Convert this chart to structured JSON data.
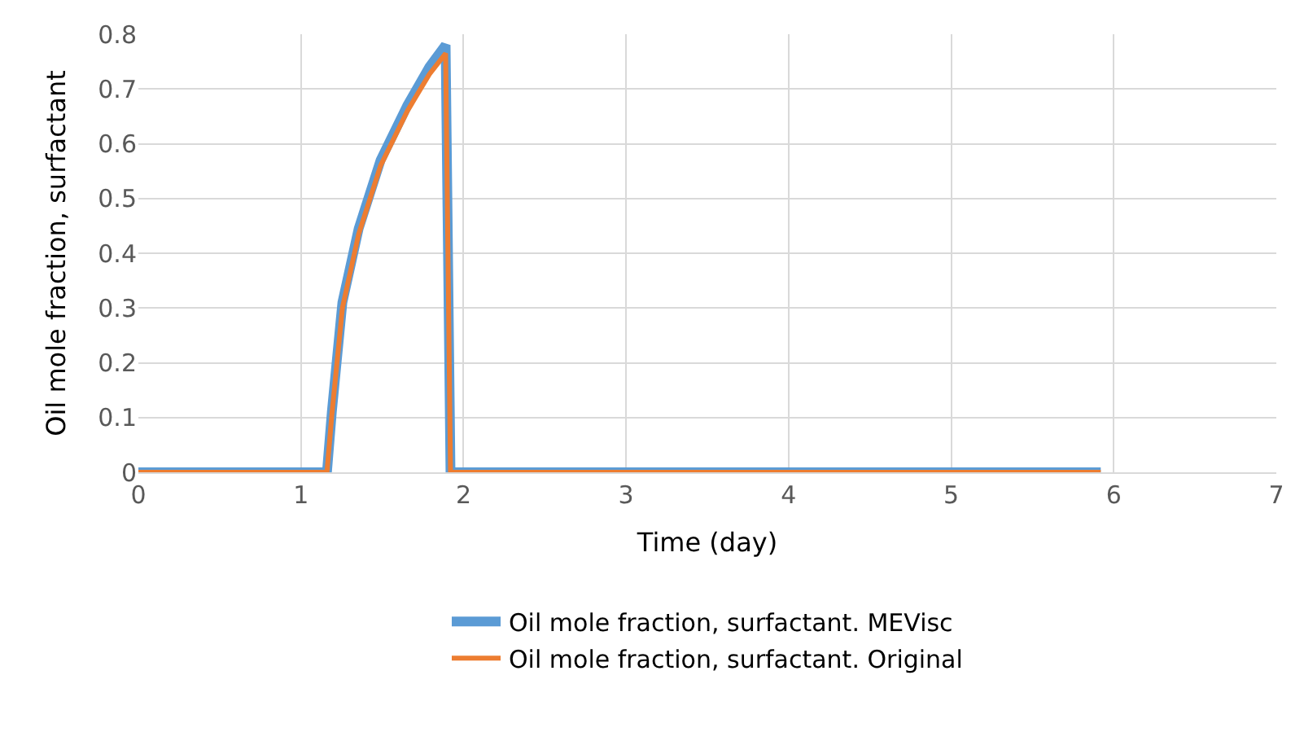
{
  "chart_data": {
    "type": "line",
    "xlabel": "Time (day)",
    "ylabel": "Oil mole fraction, surfactant",
    "series": [
      {
        "name": "Oil mole fraction, surfactant. MEVisc",
        "color": "#5b9bd5",
        "x": [
          0,
          1.16,
          1.19,
          1.255,
          1.355,
          1.49,
          1.655,
          1.79,
          1.89,
          1.92,
          5.92
        ],
        "values": [
          0,
          0,
          0.11,
          0.31,
          0.445,
          0.57,
          0.67,
          0.74,
          0.78,
          0,
          0
        ]
      },
      {
        "name": "Oil mole fraction, surfactant. Original",
        "color": "#ed7d31",
        "x": [
          0,
          1.16,
          1.19,
          1.255,
          1.355,
          1.49,
          1.655,
          1.79,
          1.89,
          1.92,
          5.92
        ],
        "values": [
          0,
          0,
          0.105,
          0.3,
          0.435,
          0.56,
          0.66,
          0.727,
          0.765,
          0,
          0
        ]
      }
    ],
    "xlim": [
      0,
      7
    ],
    "xticks": [
      0,
      1,
      2,
      3,
      4,
      5,
      6,
      7
    ],
    "ylim": [
      0,
      0.8
    ],
    "yticks": [
      0,
      0.1,
      0.2,
      0.3,
      0.4,
      0.5,
      0.6,
      0.7,
      0.8
    ],
    "grid": true,
    "legend": "bottom",
    "marker": "none",
    "line_style": "solid"
  }
}
